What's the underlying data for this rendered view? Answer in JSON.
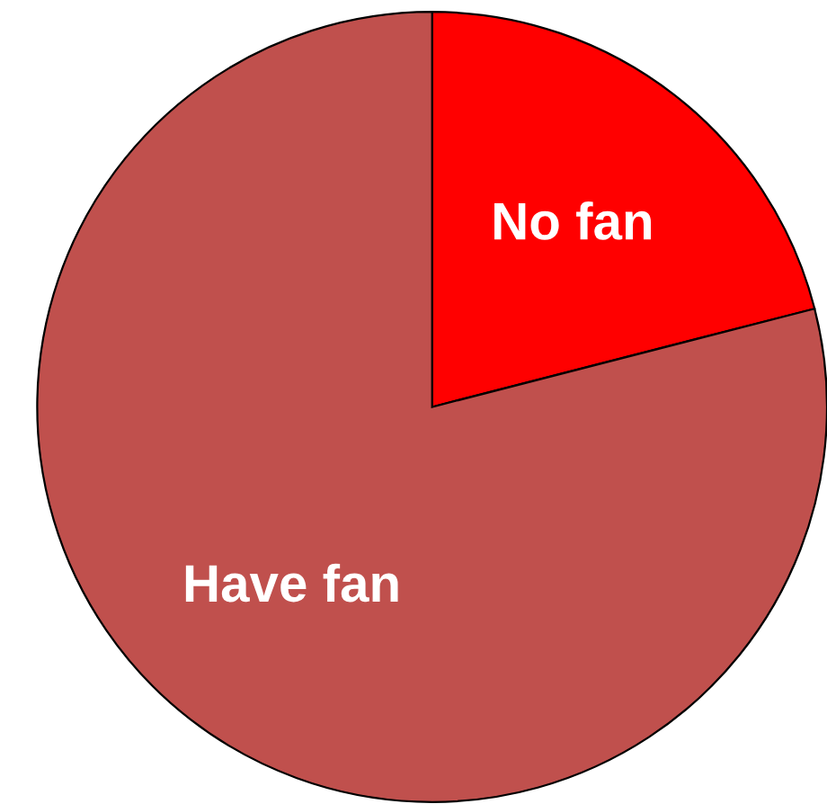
{
  "chart_data": {
    "type": "pie",
    "categories": [
      "No fan",
      "Have fan"
    ],
    "values": [
      21,
      79
    ],
    "colors": [
      "#ff0000",
      "#c0504d"
    ],
    "legend": false
  }
}
